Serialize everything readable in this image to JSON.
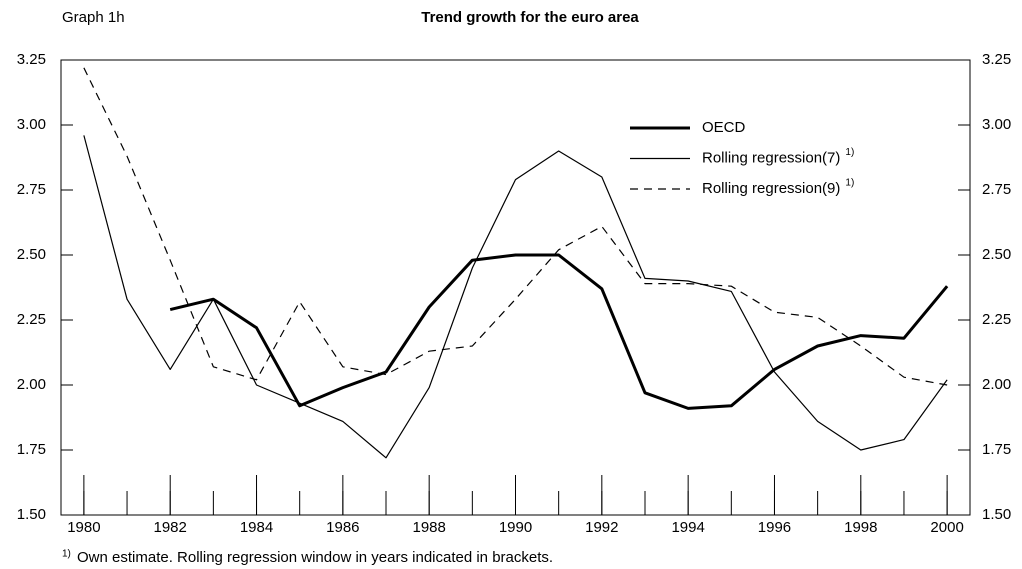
{
  "chart_data": {
    "type": "line",
    "label": "Graph 1h",
    "title": "Trend growth for the euro area",
    "x": [
      1980,
      1981,
      1982,
      1983,
      1984,
      1985,
      1986,
      1987,
      1988,
      1989,
      1990,
      1991,
      1992,
      1993,
      1994,
      1995,
      1996,
      1997,
      1998,
      1999,
      2000
    ],
    "series": [
      {
        "name": "OECD",
        "color": "#000000",
        "width": 3,
        "dash": "solid",
        "values": [
          null,
          null,
          2.29,
          2.33,
          2.22,
          1.92,
          1.99,
          2.05,
          2.3,
          2.48,
          2.5,
          2.5,
          2.37,
          1.97,
          1.91,
          1.92,
          2.06,
          2.15,
          2.19,
          2.18,
          2.38
        ]
      },
      {
        "name": "Rolling regression(7)",
        "color": "#000000",
        "width": 1.2,
        "dash": "solid",
        "values": [
          2.96,
          2.33,
          2.06,
          2.33,
          2.0,
          1.93,
          1.86,
          1.72,
          1.99,
          2.45,
          2.79,
          2.9,
          2.8,
          2.41,
          2.4,
          2.36,
          2.05,
          1.86,
          1.75,
          1.79,
          2.02
        ]
      },
      {
        "name": "Rolling regression(9)",
        "color": "#000000",
        "width": 1.2,
        "dash": "dashed",
        "values": [
          3.22,
          2.88,
          2.48,
          2.07,
          2.02,
          2.32,
          2.07,
          2.04,
          2.13,
          2.15,
          2.33,
          2.52,
          2.61,
          2.39,
          2.39,
          2.38,
          2.28,
          2.26,
          2.15,
          2.03,
          2.0
        ]
      }
    ],
    "xlim": [
      1979.47,
      2000.53
    ],
    "xticks": [
      1980,
      1982,
      1984,
      1986,
      1988,
      1990,
      1992,
      1994,
      1996,
      1998,
      2000
    ],
    "ylim": [
      1.5,
      3.25
    ],
    "yticks": [
      {
        "value": 1.5,
        "label": "1.50"
      },
      {
        "value": 1.75,
        "label": "1.75"
      },
      {
        "value": 2,
        "label": "2.00"
      },
      {
        "value": 2.25,
        "label": "2.25"
      },
      {
        "value": 2.5,
        "label": "2.50"
      },
      {
        "value": 2.75,
        "label": "2.75"
      },
      {
        "value": 3,
        "label": "3.00"
      },
      {
        "value": 3.25,
        "label": "3.25"
      }
    ],
    "footnote": {
      "marker": "1)",
      "text": "Own estimate. Rolling regression window in years indicated in brackets."
    }
  }
}
